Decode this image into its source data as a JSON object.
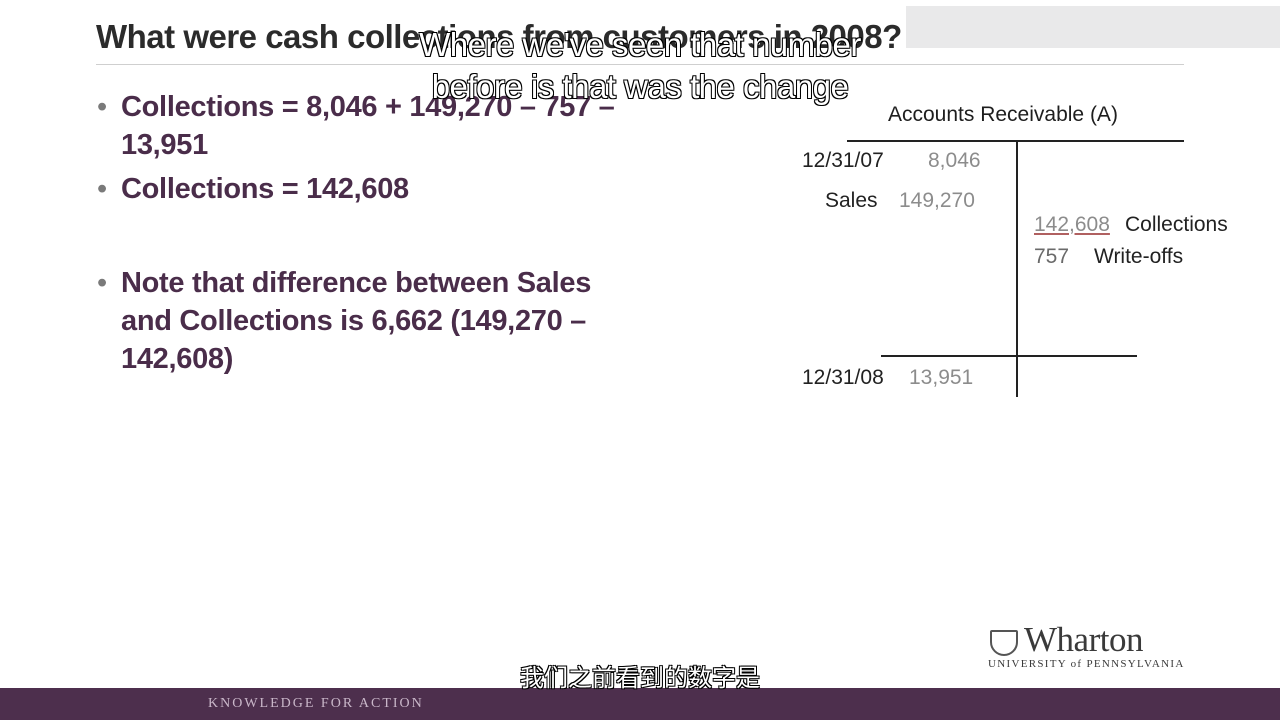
{
  "slide": {
    "title": "What were cash collections from customers in 2008?",
    "bullets": [
      "Collections = 8,046 + 149,270 – 757 – 13,951",
      "Collections = 142,608",
      "Note that difference between Sales and Collections is 6,662 (149,270 – 142,608)"
    ]
  },
  "t_account": {
    "title": "Accounts Receivable (A)",
    "debits": [
      {
        "date": "12/31/07",
        "amount": "8,046"
      },
      {
        "label": "Sales",
        "amount": "149,270"
      }
    ],
    "credits": [
      {
        "amount": "142,608",
        "label": "Collections"
      },
      {
        "amount": "757",
        "label": "Write-offs"
      }
    ],
    "ending": {
      "date": "12/31/08",
      "amount": "13,951"
    }
  },
  "subtitles": {
    "english_line1": "Where we've seen that number",
    "english_line2": "before is that was the change",
    "chinese": "我们之前看到的数字是"
  },
  "branding": {
    "logo_word": "Wharton",
    "logo_subtitle": "UNIVERSITY of PENNSYLVANIA",
    "tagline": "KNOWLEDGE FOR ACTION",
    "footer_color": "#4d2f4d"
  }
}
